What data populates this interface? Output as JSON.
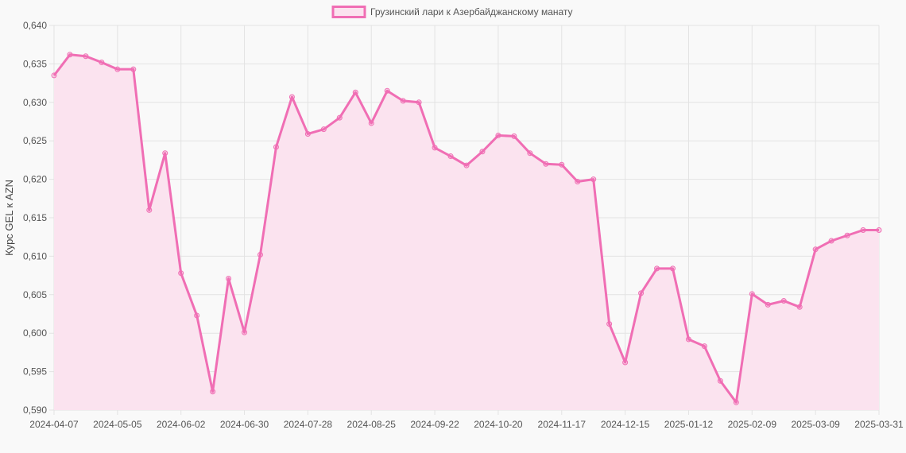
{
  "chart_data": {
    "type": "line",
    "title": "",
    "legend": {
      "placement": "top-center"
    },
    "xlabel": "",
    "ylabel": "Курс GEL к AZN",
    "ylim": [
      0.59,
      0.64
    ],
    "y_ticks": [
      "0,590",
      "0,595",
      "0,600",
      "0,605",
      "0,610",
      "0,615",
      "0,620",
      "0,625",
      "0,630",
      "0,635",
      "0,640"
    ],
    "x_ticks": [
      "2024-04-07",
      "2024-05-05",
      "2024-06-02",
      "2024-06-30",
      "2024-07-28",
      "2024-08-25",
      "2024-09-22",
      "2024-10-20",
      "2024-11-17",
      "2024-12-15",
      "2025-01-12",
      "2025-02-09",
      "2025-03-09",
      "2025-03-31"
    ],
    "grid": true,
    "fill": true,
    "colors": {
      "line": "#f06eb4",
      "fill": "#fbe3ef",
      "grid": "#e3e3e3"
    },
    "series": [
      {
        "name": "Грузинский лари к Азербайджанскому манату",
        "values": [
          0.6335,
          0.6362,
          0.636,
          0.6352,
          0.6343,
          0.6343,
          0.616,
          0.6234,
          0.6078,
          0.6023,
          0.5924,
          0.6071,
          0.6001,
          0.6102,
          0.6242,
          0.6307,
          0.6259,
          0.6265,
          0.628,
          0.6313,
          0.6273,
          0.6315,
          0.6302,
          0.63,
          0.6241,
          0.623,
          0.6218,
          0.6236,
          0.6257,
          0.6256,
          0.6234,
          0.622,
          0.6219,
          0.6197,
          0.62,
          0.6012,
          0.5962,
          0.6052,
          0.6084,
          0.6084,
          0.5992,
          0.5983,
          0.5938,
          0.591,
          0.6051,
          0.6037,
          0.6042,
          0.6034,
          0.6109,
          0.612,
          0.6127,
          0.6134,
          0.6134
        ]
      }
    ]
  }
}
